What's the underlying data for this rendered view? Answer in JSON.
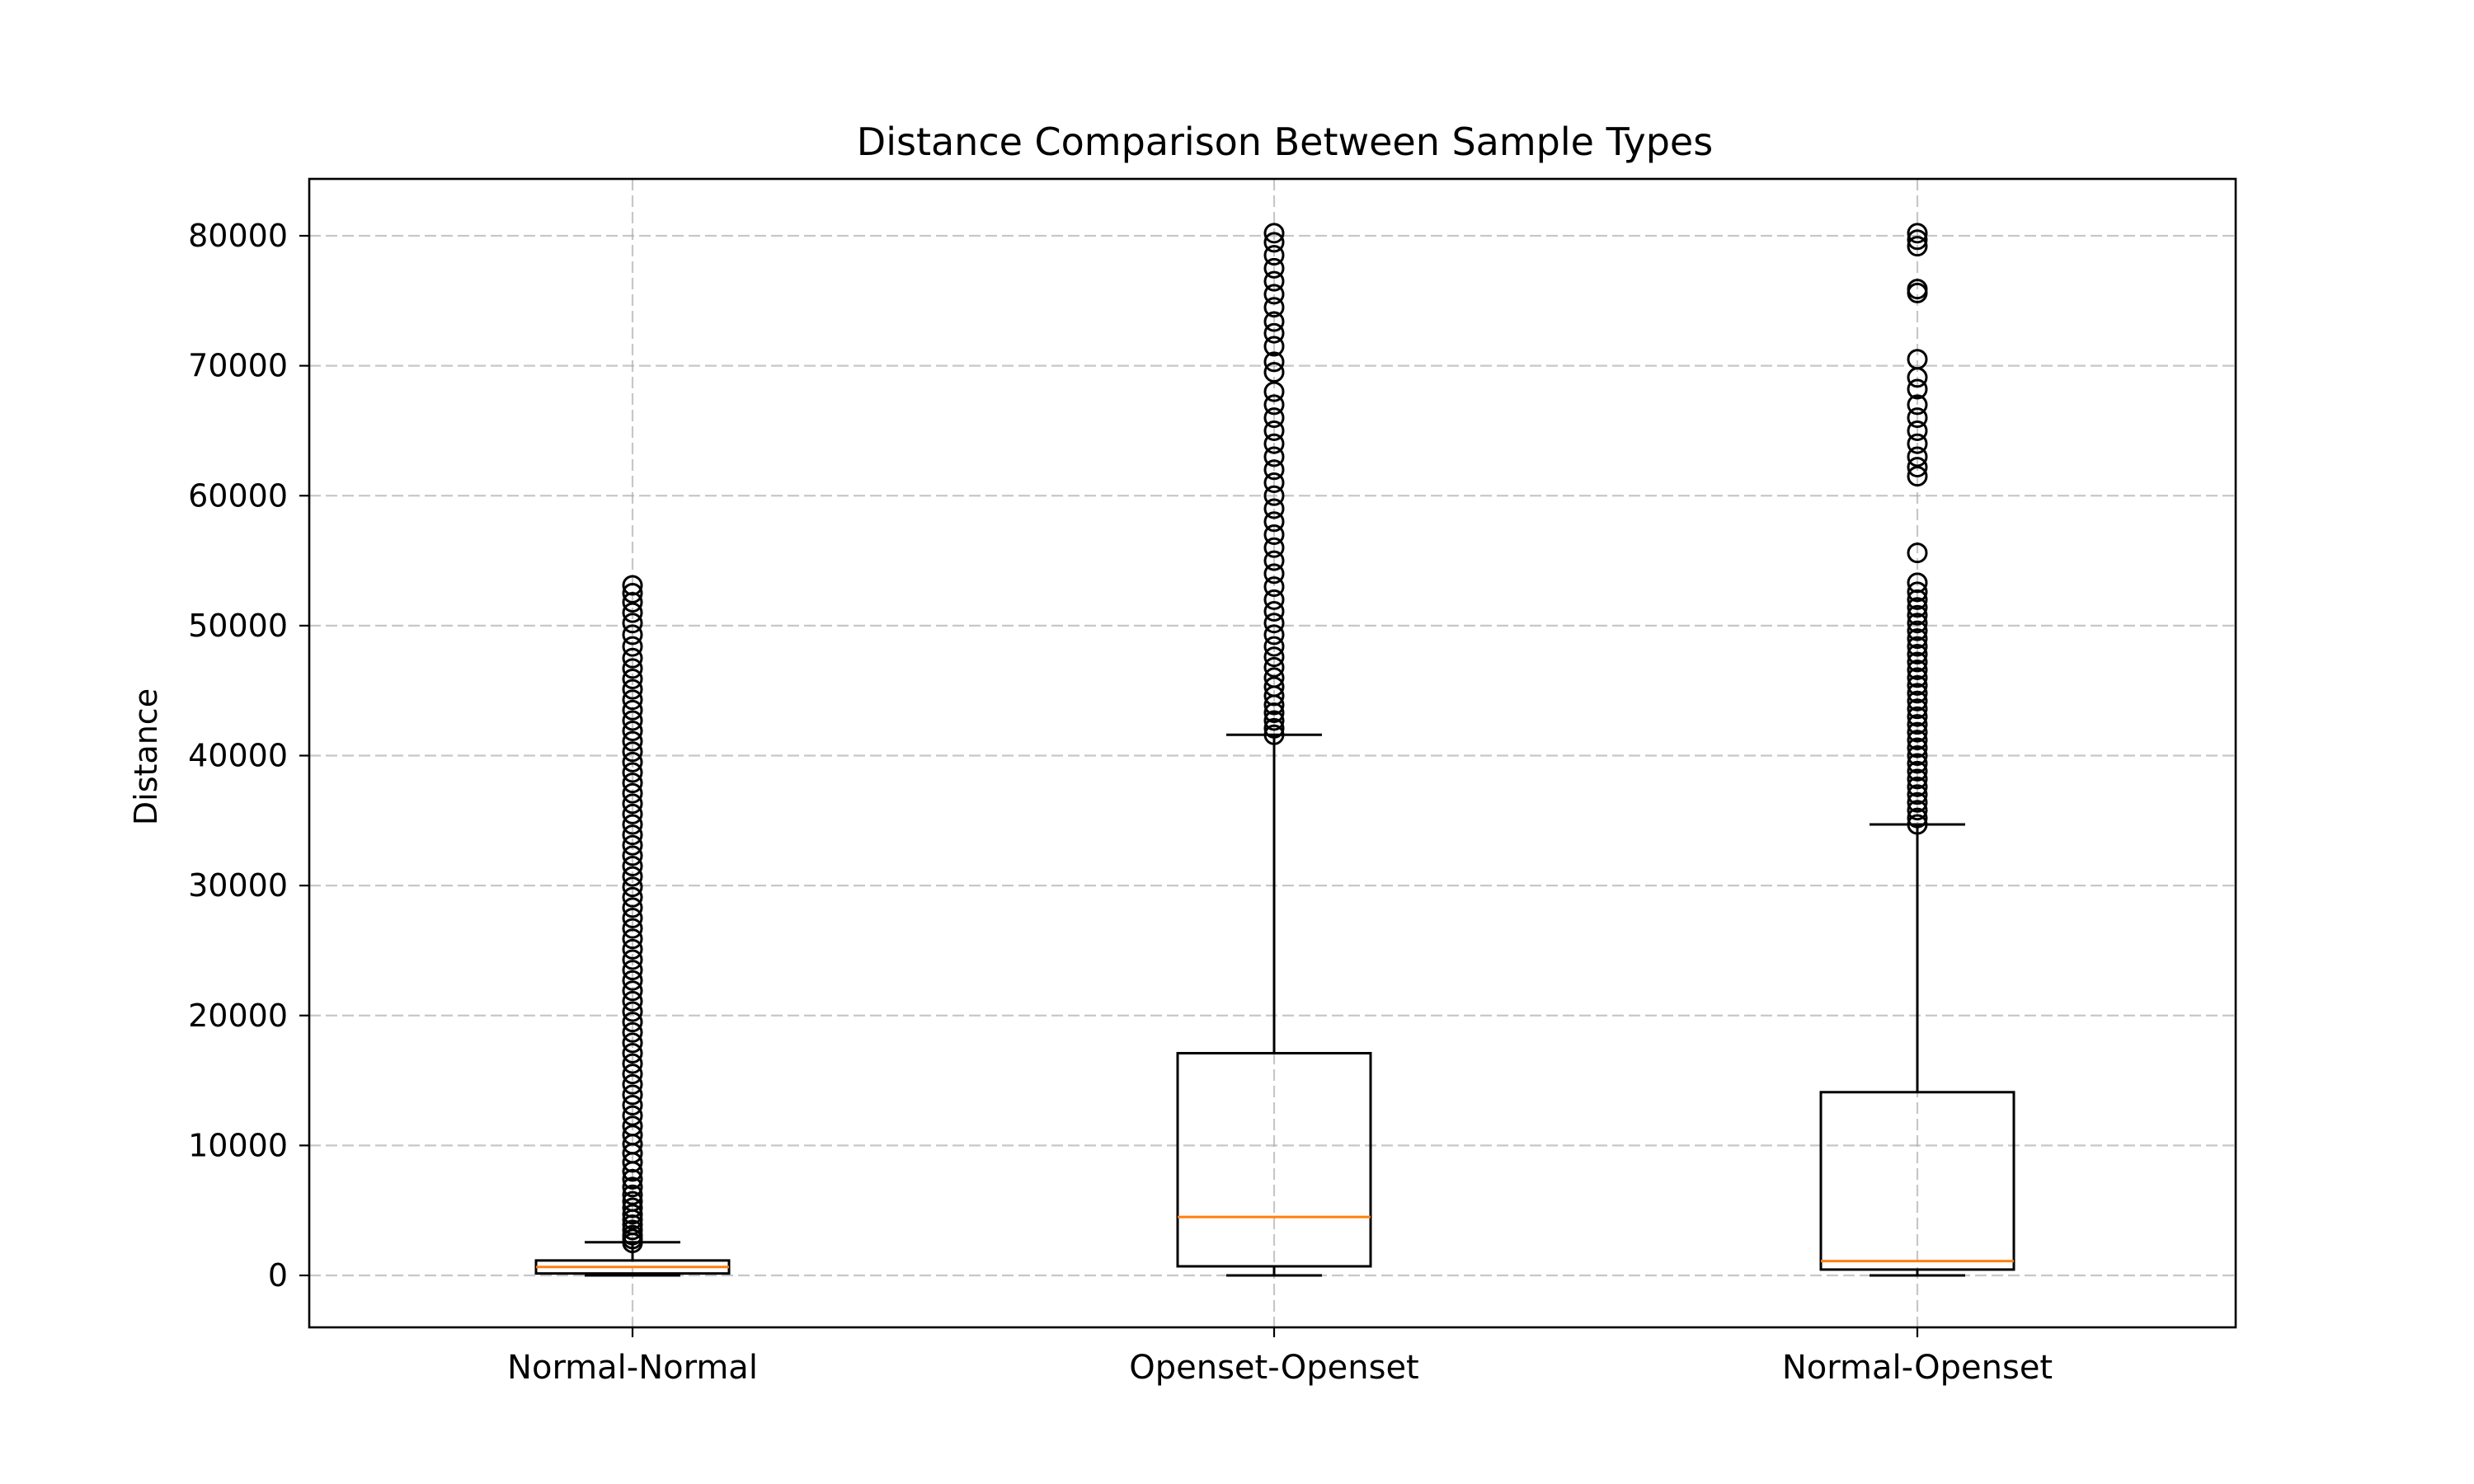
{
  "chart_data": {
    "type": "boxplot",
    "title": "Distance Comparison Between Sample Types",
    "xlabel": "",
    "ylabel": "Distance",
    "categories": [
      "Normal-Normal",
      "Openset-Openset",
      "Normal-Openset"
    ],
    "ylim": [
      -4000,
      84500
    ],
    "yticks": [
      0,
      10000,
      20000,
      30000,
      40000,
      50000,
      60000,
      70000,
      80000
    ],
    "ytick_labels": [
      "0",
      "10000",
      "20000",
      "30000",
      "40000",
      "50000",
      "60000",
      "70000",
      "80000"
    ],
    "grid": true,
    "colors": {
      "box": "#000000",
      "median": "#ff7f0e",
      "grid": "#b0b0b0"
    },
    "boxes": [
      {
        "label": "Normal-Normal",
        "whisker_low": 0,
        "q1": 150,
        "median": 650,
        "q3": 1150,
        "whisker_high": 2550,
        "outliers": [
          2500,
          2800,
          3100,
          3500,
          3900,
          4300,
          4700,
          5200,
          5700,
          6200,
          6800,
          7400,
          8000,
          8700,
          9400,
          10100,
          10800,
          11500,
          12300,
          13100,
          13900,
          14700,
          15500,
          16300,
          17100,
          17900,
          18700,
          19500,
          20300,
          21100,
          21900,
          22700,
          23500,
          24300,
          25100,
          25900,
          26700,
          27500,
          28300,
          29100,
          29900,
          30700,
          31500,
          32300,
          33100,
          33900,
          34700,
          35500,
          36300,
          37100,
          37900,
          38700,
          39500,
          40300,
          41100,
          41900,
          42700,
          43500,
          44300,
          45100,
          45900,
          46700,
          47500,
          48400,
          49300,
          50200,
          51000,
          51800,
          52500,
          53100
        ]
      },
      {
        "label": "Openset-Openset",
        "whisker_low": 0,
        "q1": 700,
        "median": 4500,
        "q3": 17100,
        "whisker_high": 41600,
        "outliers": [
          41600,
          42100,
          42700,
          43300,
          43900,
          44600,
          45300,
          46000,
          46800,
          47600,
          48400,
          49300,
          50200,
          51100,
          52000,
          53000,
          54000,
          55000,
          56000,
          57000,
          58000,
          59000,
          60000,
          61000,
          62000,
          63000,
          64000,
          65000,
          66000,
          67000,
          68000,
          69500,
          70300,
          71500,
          72500,
          73400,
          74500,
          75500,
          76500,
          77500,
          78500,
          79500,
          80200
        ]
      },
      {
        "label": "Normal-Openset",
        "whisker_low": 0,
        "q1": 450,
        "median": 1100,
        "q3": 14100,
        "whisker_high": 34700,
        "outliers": [
          34700,
          35200,
          35800,
          36400,
          37000,
          37600,
          38200,
          38800,
          39400,
          40000,
          40600,
          41200,
          41800,
          42400,
          43000,
          43600,
          44200,
          44800,
          45400,
          46000,
          46600,
          47200,
          47800,
          48400,
          49000,
          49600,
          50200,
          50800,
          51400,
          52000,
          52600,
          53300,
          55600,
          61500,
          62200,
          63000,
          64000,
          65000,
          66000,
          67000,
          68200,
          69100,
          70500,
          75600,
          75900,
          79200,
          79700,
          80200
        ]
      }
    ]
  }
}
